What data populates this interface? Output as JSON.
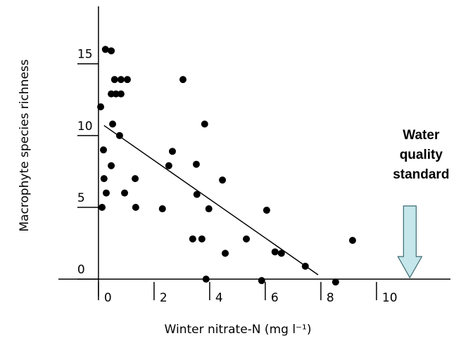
{
  "chart_data": {
    "type": "scatter",
    "x_label": "Winter nitrate-N (mg l⁻¹)",
    "y_label": "Macrophyte species richness",
    "xlim": [
      -1.44,
      12.66
    ],
    "ylim": [
      -2.0,
      19.0
    ],
    "xticks": [
      0,
      2,
      4,
      6,
      8,
      10
    ],
    "yticks": [
      0,
      5,
      10,
      15
    ],
    "color": "#000000",
    "x": [
      0.25,
      0.46,
      0.58,
      0.81,
      1.04,
      0.46,
      0.63,
      0.81,
      0.08,
      0.51,
      0.76,
      3.04,
      3.82,
      0.18,
      2.66,
      0.46,
      2.53,
      3.52,
      0.2,
      1.32,
      4.46,
      0.28,
      0.94,
      3.54,
      0.13,
      1.34,
      2.3,
      3.97,
      6.05,
      3.39,
      3.72,
      5.32,
      9.14,
      4.56,
      6.35,
      6.58,
      7.44,
      3.87,
      5.87,
      8.53
    ],
    "values": [
      16.0,
      15.9,
      13.9,
      13.9,
      13.9,
      12.9,
      12.9,
      12.9,
      12.0,
      10.8,
      10.0,
      13.9,
      10.8,
      9.0,
      8.9,
      7.9,
      7.9,
      8.0,
      7.0,
      7.0,
      6.9,
      6.0,
      6.0,
      5.9,
      5.0,
      5.0,
      4.9,
      4.9,
      4.8,
      2.8,
      2.8,
      2.8,
      2.7,
      1.8,
      1.9,
      1.8,
      0.9,
      0.0,
      -0.1,
      -0.2
    ],
    "trend_line": {
      "x": [
        0.2,
        7.9
      ],
      "y": [
        10.7,
        0.3
      ]
    },
    "annotation": {
      "lines": [
        "Water",
        "quality",
        "standard"
      ],
      "x": 11.2
    }
  }
}
